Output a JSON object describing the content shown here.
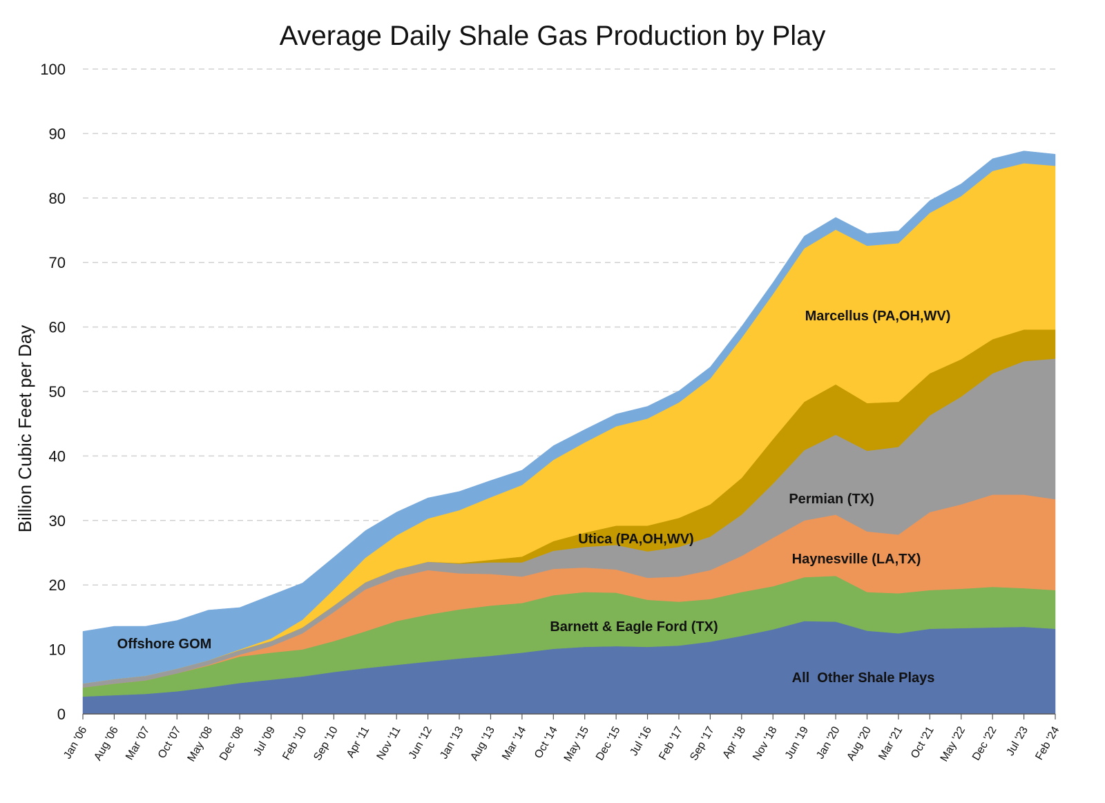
{
  "chart_data": {
    "type": "area",
    "stacked": true,
    "title": "Average Daily Shale Gas Production by Play",
    "ylabel": "Billion Cubic Feet per Day",
    "xlabel": "",
    "ylim": [
      0,
      100
    ],
    "yticks": [
      0,
      10,
      20,
      30,
      40,
      50,
      60,
      70,
      80,
      90,
      100
    ],
    "grid": "horizontal-dashed",
    "x": [
      "Jan '06",
      "Aug '06",
      "Mar '07",
      "Oct '07",
      "May '08",
      "Dec '08",
      "Jul '09",
      "Feb '10",
      "Sep '10",
      "Apr '11",
      "Nov '11",
      "Jun '12",
      "Jan '13",
      "Aug '13",
      "Mar '14",
      "Oct '14",
      "May '15",
      "Dec '15",
      "Jul '16",
      "Feb '17",
      "Sep '17",
      "Apr '18",
      "Nov '18",
      "Jun '19",
      "Jan '20",
      "Aug '20",
      "Mar '21",
      "Oct '21",
      "May '22",
      "Dec '22",
      "Jul '23",
      "Feb '24"
    ],
    "series": [
      {
        "name": "All  Other Shale Plays",
        "color": "#5875AE",
        "values": [
          2.7,
          2.9,
          3.1,
          3.5,
          4.1,
          4.8,
          5.3,
          5.8,
          6.5,
          7.1,
          7.6,
          8.1,
          8.6,
          9.0,
          9.5,
          10.1,
          10.4,
          10.5,
          10.4,
          10.6,
          11.2,
          12.1,
          13.1,
          14.4,
          14.3,
          12.9,
          12.5,
          13.2,
          13.3,
          13.4,
          13.5,
          13.2
        ]
      },
      {
        "name": "Barnett & Eagle Ford (TX)",
        "color": "#7EB356",
        "values": [
          1.4,
          1.8,
          2.1,
          2.8,
          3.4,
          4.1,
          4.2,
          4.2,
          4.8,
          5.7,
          6.8,
          7.3,
          7.6,
          7.8,
          7.7,
          8.3,
          8.5,
          8.3,
          7.3,
          6.8,
          6.6,
          6.8,
          6.7,
          6.8,
          7.1,
          6.0,
          6.2,
          6.0,
          6.1,
          6.3,
          6.0,
          6.0
        ]
      },
      {
        "name": "Haynesville (LA,TX)",
        "color": "#EE9558",
        "values": [
          0.0,
          0.0,
          0.0,
          0.0,
          0.1,
          0.3,
          1.0,
          2.5,
          4.5,
          6.5,
          6.8,
          6.9,
          5.6,
          4.9,
          4.1,
          4.1,
          3.8,
          3.6,
          3.4,
          3.9,
          4.5,
          5.6,
          7.5,
          8.8,
          9.5,
          9.4,
          9.1,
          12.1,
          13.1,
          14.3,
          14.5,
          14.1
        ]
      },
      {
        "name": "Permian (TX)",
        "color": "#9B9B9B",
        "values": [
          0.6,
          0.7,
          0.7,
          0.7,
          0.7,
          0.7,
          0.8,
          0.9,
          1.0,
          1.1,
          1.2,
          1.3,
          1.5,
          1.8,
          2.2,
          2.8,
          3.2,
          3.8,
          4.1,
          4.6,
          5.2,
          6.4,
          8.4,
          10.9,
          12.4,
          12.5,
          13.6,
          15.0,
          16.7,
          18.8,
          20.7,
          21.8
        ]
      },
      {
        "name": "Utica (PA,OH,WV)",
        "color": "#C49A00",
        "values": [
          0.0,
          0.0,
          0.0,
          0.0,
          0.0,
          0.0,
          0.0,
          0.0,
          0.0,
          0.0,
          0.0,
          0.0,
          0.1,
          0.4,
          0.9,
          1.5,
          2.2,
          3.0,
          4.0,
          4.5,
          5.0,
          5.7,
          6.9,
          7.5,
          7.8,
          7.4,
          7.0,
          6.5,
          5.8,
          5.3,
          4.9,
          4.5
        ]
      },
      {
        "name": "Marcellus (PA,OH,WV)",
        "color": "#FDC832",
        "values": [
          0.0,
          0.0,
          0.0,
          0.0,
          0.0,
          0.1,
          0.4,
          1.2,
          2.5,
          3.8,
          5.3,
          6.7,
          8.2,
          9.7,
          11.1,
          12.6,
          14.0,
          15.4,
          16.6,
          17.9,
          19.5,
          21.7,
          22.5,
          23.8,
          24.0,
          24.4,
          24.6,
          24.9,
          25.3,
          26.1,
          25.8,
          25.4
        ]
      },
      {
        "name": "Offshore GOM",
        "color": "#78AADC",
        "values": [
          8.1,
          8.2,
          7.7,
          7.5,
          7.8,
          6.5,
          6.7,
          5.7,
          5.0,
          4.2,
          3.6,
          3.2,
          2.9,
          2.6,
          2.3,
          2.2,
          2.0,
          1.9,
          1.9,
          1.8,
          1.8,
          1.8,
          1.8,
          1.9,
          1.9,
          1.9,
          1.9,
          1.9,
          1.9,
          1.9,
          1.9,
          1.8
        ]
      }
    ],
    "annotations": [
      {
        "text": "Offshore GOM",
        "color": "#404040"
      },
      {
        "text": "Barnett & Eagle Ford (TX)"
      },
      {
        "text": "All  Other Shale Plays"
      },
      {
        "text": "Haynesville (LA,TX)"
      },
      {
        "text": "Permian (TX)"
      },
      {
        "text": "Utica (PA,OH,WV)"
      },
      {
        "text": "Marcellus (PA,OH,WV)"
      }
    ]
  }
}
